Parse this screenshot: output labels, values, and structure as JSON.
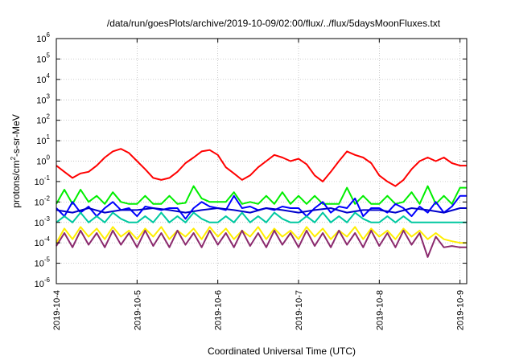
{
  "chart_data": {
    "type": "line",
    "title": "/data/run/goesPlots/archive/2019-10-09/02:00/flux/../flux/5daysMoonFluxes.txt",
    "xlabel": "Coordinated Universal Time (UTC)",
    "ylabel": {
      "prefix": "protons/cm",
      "sup": "2",
      "suffix": "-s-sr-MeV"
    },
    "yscale": "log",
    "ylim_exp": [
      -6,
      6
    ],
    "y_ticks": [
      {
        "base": "10",
        "exp": "6"
      },
      {
        "base": "10",
        "exp": "5"
      },
      {
        "base": "10",
        "exp": "4"
      },
      {
        "base": "10",
        "exp": "3"
      },
      {
        "base": "10",
        "exp": "2"
      },
      {
        "base": "10",
        "exp": "1"
      },
      {
        "base": "10",
        "exp": "0"
      },
      {
        "base": "10",
        "exp": "-1"
      },
      {
        "base": "10",
        "exp": "-2"
      },
      {
        "base": "10",
        "exp": "-3"
      },
      {
        "base": "10",
        "exp": "-4"
      },
      {
        "base": "10",
        "exp": "-5"
      },
      {
        "base": "10",
        "exp": "-6"
      }
    ],
    "xlim": [
      "2019-10-04",
      "2019-10-09 02:00"
    ],
    "x_ticks": [
      "2019-10-4",
      "2019-10-5",
      "2019-10-6",
      "2019-10-7",
      "2019-10-8",
      "2019-10-9"
    ],
    "grid": true,
    "series": [
      {
        "color": "#ff0000",
        "x": [
          0,
          0.1,
          0.2,
          0.3,
          0.4,
          0.5,
          0.6,
          0.7,
          0.8,
          0.9,
          1.0,
          1.1,
          1.2,
          1.3,
          1.4,
          1.5,
          1.6,
          1.7,
          1.8,
          1.9,
          2.0,
          2.1,
          2.2,
          2.3,
          2.4,
          2.5,
          2.6,
          2.7,
          2.8,
          2.9,
          3.0,
          3.1,
          3.2,
          3.3,
          3.4,
          3.5,
          3.6,
          3.7,
          3.8,
          3.9,
          4.0,
          4.1,
          4.2,
          4.3,
          4.4,
          4.5,
          4.6,
          4.7,
          4.8,
          4.9,
          5.0,
          5.083
        ],
        "y": [
          0.6,
          0.3,
          0.15,
          0.25,
          0.3,
          0.6,
          1.5,
          3,
          4,
          2.5,
          1,
          0.4,
          0.15,
          0.12,
          0.15,
          0.3,
          0.8,
          1.5,
          3,
          3.5,
          2,
          0.5,
          0.25,
          0.12,
          0.2,
          0.5,
          1,
          2,
          1.5,
          1,
          1.3,
          0.7,
          0.2,
          0.1,
          0.3,
          1,
          3,
          2,
          1.5,
          0.8,
          0.2,
          0.1,
          0.06,
          0.12,
          0.4,
          1,
          1.5,
          1,
          1.5,
          0.8,
          0.6,
          0.6
        ]
      },
      {
        "color": "#00ee00",
        "x": [
          0,
          0.1,
          0.2,
          0.3,
          0.4,
          0.5,
          0.6,
          0.7,
          0.8,
          0.9,
          1.0,
          1.1,
          1.2,
          1.3,
          1.4,
          1.5,
          1.6,
          1.7,
          1.8,
          1.9,
          2.0,
          2.1,
          2.2,
          2.3,
          2.4,
          2.5,
          2.6,
          2.7,
          2.8,
          2.9,
          3.0,
          3.1,
          3.2,
          3.3,
          3.4,
          3.5,
          3.6,
          3.7,
          3.8,
          3.9,
          4.0,
          4.1,
          4.2,
          4.3,
          4.4,
          4.5,
          4.6,
          4.7,
          4.8,
          4.9,
          5.0,
          5.083
        ],
        "y": [
          0.008,
          0.04,
          0.008,
          0.04,
          0.01,
          0.02,
          0.008,
          0.03,
          0.01,
          0.008,
          0.008,
          0.02,
          0.008,
          0.008,
          0.02,
          0.008,
          0.009,
          0.06,
          0.015,
          0.01,
          0.01,
          0.01,
          0.03,
          0.008,
          0.01,
          0.008,
          0.02,
          0.008,
          0.03,
          0.008,
          0.02,
          0.008,
          0.02,
          0.008,
          0.008,
          0.008,
          0.05,
          0.008,
          0.02,
          0.008,
          0.008,
          0.02,
          0.008,
          0.01,
          0.03,
          0.008,
          0.06,
          0.008,
          0.02,
          0.008,
          0.05,
          0.05
        ]
      },
      {
        "color": "#0000ff",
        "x": [
          0,
          0.1,
          0.2,
          0.3,
          0.4,
          0.5,
          0.6,
          0.7,
          0.8,
          0.9,
          1.0,
          1.1,
          1.2,
          1.3,
          1.4,
          1.5,
          1.6,
          1.7,
          1.8,
          1.9,
          2.0,
          2.1,
          2.2,
          2.3,
          2.4,
          2.5,
          2.6,
          2.7,
          2.8,
          2.9,
          3.0,
          3.1,
          3.2,
          3.3,
          3.4,
          3.5,
          3.6,
          3.7,
          3.8,
          3.9,
          4.0,
          4.1,
          4.2,
          4.3,
          4.4,
          4.5,
          4.6,
          4.7,
          4.8,
          4.9,
          5.0,
          5.083
        ],
        "y": [
          0.005,
          0.002,
          0.01,
          0.003,
          0.006,
          0.002,
          0.005,
          0.01,
          0.004,
          0.005,
          0.002,
          0.006,
          0.005,
          0.004,
          0.005,
          0.005,
          0.0015,
          0.005,
          0.01,
          0.006,
          0.005,
          0.004,
          0.02,
          0.005,
          0.006,
          0.004,
          0.005,
          0.004,
          0.006,
          0.005,
          0.005,
          0.002,
          0.005,
          0.01,
          0.003,
          0.006,
          0.005,
          0.015,
          0.002,
          0.005,
          0.005,
          0.003,
          0.008,
          0.005,
          0.002,
          0.006,
          0.003,
          0.01,
          0.003,
          0.006,
          0.02,
          0.02
        ]
      },
      {
        "color": "#0000cc",
        "x": [
          0,
          0.2,
          0.4,
          0.6,
          0.8,
          1.0,
          1.2,
          1.4,
          1.6,
          1.8,
          2.0,
          2.2,
          2.4,
          2.6,
          2.8,
          3.0,
          3.2,
          3.4,
          3.6,
          3.8,
          4.0,
          4.2,
          4.4,
          4.6,
          4.8,
          5.0,
          5.083
        ],
        "y": [
          0.004,
          0.003,
          0.005,
          0.003,
          0.004,
          0.004,
          0.005,
          0.004,
          0.003,
          0.004,
          0.005,
          0.004,
          0.003,
          0.005,
          0.004,
          0.003,
          0.004,
          0.005,
          0.003,
          0.004,
          0.004,
          0.003,
          0.005,
          0.004,
          0.003,
          0.005,
          0.005
        ]
      },
      {
        "color": "#00c8a0",
        "x": [
          0,
          0.1,
          0.2,
          0.3,
          0.4,
          0.5,
          0.6,
          0.7,
          0.8,
          0.9,
          1.0,
          1.1,
          1.2,
          1.3,
          1.4,
          1.5,
          1.6,
          1.7,
          1.8,
          1.9,
          2.0,
          2.1,
          2.2,
          2.3,
          2.4,
          2.5,
          2.6,
          2.7,
          2.8,
          2.9,
          3.0,
          3.1,
          3.2,
          3.3,
          3.4,
          3.5,
          3.6,
          3.7,
          3.8,
          3.9,
          4.0,
          4.1,
          4.2,
          4.3,
          4.4,
          4.5,
          4.6,
          4.7,
          4.8,
          4.9,
          5.0,
          5.083
        ],
        "y": [
          0.001,
          0.002,
          0.001,
          0.003,
          0.001,
          0.002,
          0.001,
          0.003,
          0.0015,
          0.001,
          0.001,
          0.002,
          0.001,
          0.003,
          0.001,
          0.002,
          0.001,
          0.003,
          0.0015,
          0.001,
          0.001,
          0.002,
          0.001,
          0.003,
          0.001,
          0.002,
          0.001,
          0.003,
          0.0015,
          0.001,
          0.001,
          0.002,
          0.001,
          0.003,
          0.001,
          0.002,
          0.001,
          0.003,
          0.0015,
          0.001,
          0.001,
          0.002,
          0.001,
          0.002,
          0.001,
          0.001,
          0.001,
          0.001,
          0.001,
          0.001,
          0.001,
          0.001
        ]
      },
      {
        "color": "#ffee00",
        "x": [
          0,
          0.1,
          0.2,
          0.3,
          0.4,
          0.5,
          0.6,
          0.7,
          0.8,
          0.9,
          1.0,
          1.1,
          1.2,
          1.3,
          1.4,
          1.5,
          1.6,
          1.7,
          1.8,
          1.9,
          2.0,
          2.1,
          2.2,
          2.3,
          2.4,
          2.5,
          2.6,
          2.7,
          2.8,
          2.9,
          3.0,
          3.1,
          3.2,
          3.3,
          3.4,
          3.5,
          3.6,
          3.7,
          3.8,
          3.9,
          4.0,
          4.1,
          4.2,
          4.3,
          4.4,
          4.5,
          4.6,
          4.7,
          4.8,
          4.9,
          5.0,
          5.083
        ],
        "y": [
          0.0001,
          0.0005,
          0.00015,
          0.0006,
          0.0002,
          0.0005,
          0.00015,
          0.0006,
          0.0002,
          0.0004,
          0.00015,
          0.0005,
          0.0002,
          0.0006,
          0.00015,
          0.0004,
          0.0002,
          0.0005,
          0.00015,
          0.0006,
          0.0002,
          0.0005,
          0.00015,
          0.0004,
          0.0002,
          0.0006,
          0.00015,
          0.0005,
          0.0002,
          0.0004,
          0.00015,
          0.0006,
          0.0002,
          0.0005,
          0.00015,
          0.0004,
          0.0002,
          0.0006,
          0.00015,
          0.0005,
          0.0002,
          0.0004,
          0.00015,
          0.0005,
          0.0002,
          0.0004,
          0.00015,
          0.0003,
          0.00015,
          0.00012,
          0.0001,
          0.0001
        ]
      },
      {
        "color": "#8b2a6e",
        "x": [
          0,
          0.1,
          0.2,
          0.3,
          0.4,
          0.5,
          0.6,
          0.7,
          0.8,
          0.9,
          1.0,
          1.1,
          1.2,
          1.3,
          1.4,
          1.5,
          1.6,
          1.7,
          1.8,
          1.9,
          2.0,
          2.1,
          2.2,
          2.3,
          2.4,
          2.5,
          2.6,
          2.7,
          2.8,
          2.9,
          3.0,
          3.1,
          3.2,
          3.3,
          3.4,
          3.5,
          3.6,
          3.7,
          3.8,
          3.9,
          4.0,
          4.1,
          4.2,
          4.3,
          4.4,
          4.5,
          4.6,
          4.7,
          4.8,
          4.9,
          5.0,
          5.083
        ],
        "y": [
          7e-05,
          0.0003,
          6e-05,
          0.0004,
          8e-05,
          0.0003,
          6e-05,
          0.0004,
          8e-05,
          0.0003,
          6e-05,
          0.0004,
          7e-05,
          0.0003,
          6e-05,
          0.0004,
          8e-05,
          0.0003,
          6e-05,
          0.0004,
          8e-05,
          0.0003,
          6e-05,
          0.0004,
          7e-05,
          0.0003,
          6e-05,
          0.0004,
          8e-05,
          0.0003,
          6e-05,
          0.0004,
          7e-05,
          0.0003,
          6e-05,
          0.0004,
          8e-05,
          0.0003,
          6e-05,
          0.0004,
          7e-05,
          0.0003,
          6e-05,
          0.0004,
          8e-05,
          0.0003,
          2e-05,
          0.0002,
          6e-05,
          7e-05,
          6e-05,
          6e-05
        ]
      }
    ]
  }
}
